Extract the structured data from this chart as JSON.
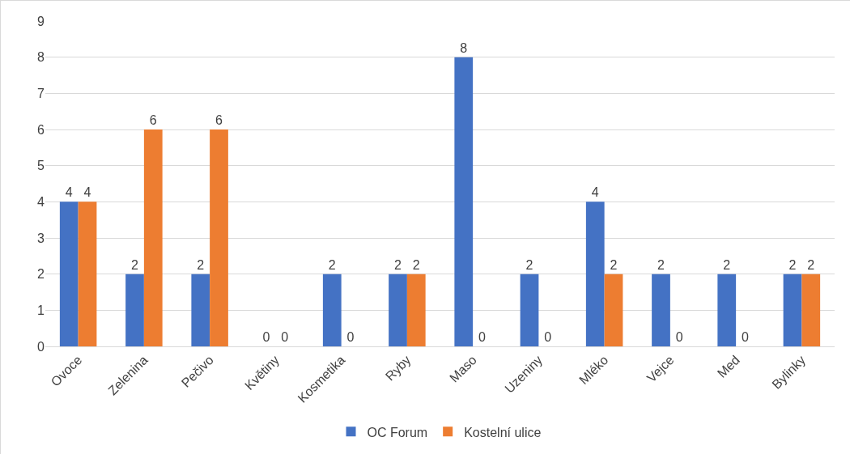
{
  "chart_data": {
    "type": "bar",
    "categories": [
      "Ovoce",
      "Zelenina",
      "Pečivo",
      "Květiny",
      "Kosmetika",
      "Ryby",
      "Maso",
      "Uzeniny",
      "Mléko",
      "Vejce",
      "Med",
      "Bylinky"
    ],
    "series": [
      {
        "name": "OC Forum",
        "color": "#4472c4",
        "values": [
          4,
          2,
          2,
          0,
          2,
          2,
          8,
          2,
          4,
          2,
          2,
          2
        ]
      },
      {
        "name": "Kostelní ulice",
        "color": "#ed7d31",
        "values": [
          4,
          6,
          6,
          0,
          0,
          2,
          0,
          0,
          2,
          0,
          0,
          2
        ]
      }
    ],
    "ylim": [
      0,
      9
    ],
    "yticks": [
      0,
      1,
      2,
      3,
      4,
      5,
      6,
      7,
      8,
      9
    ],
    "grid": "y",
    "legend": "bottom",
    "data_labels": true
  }
}
